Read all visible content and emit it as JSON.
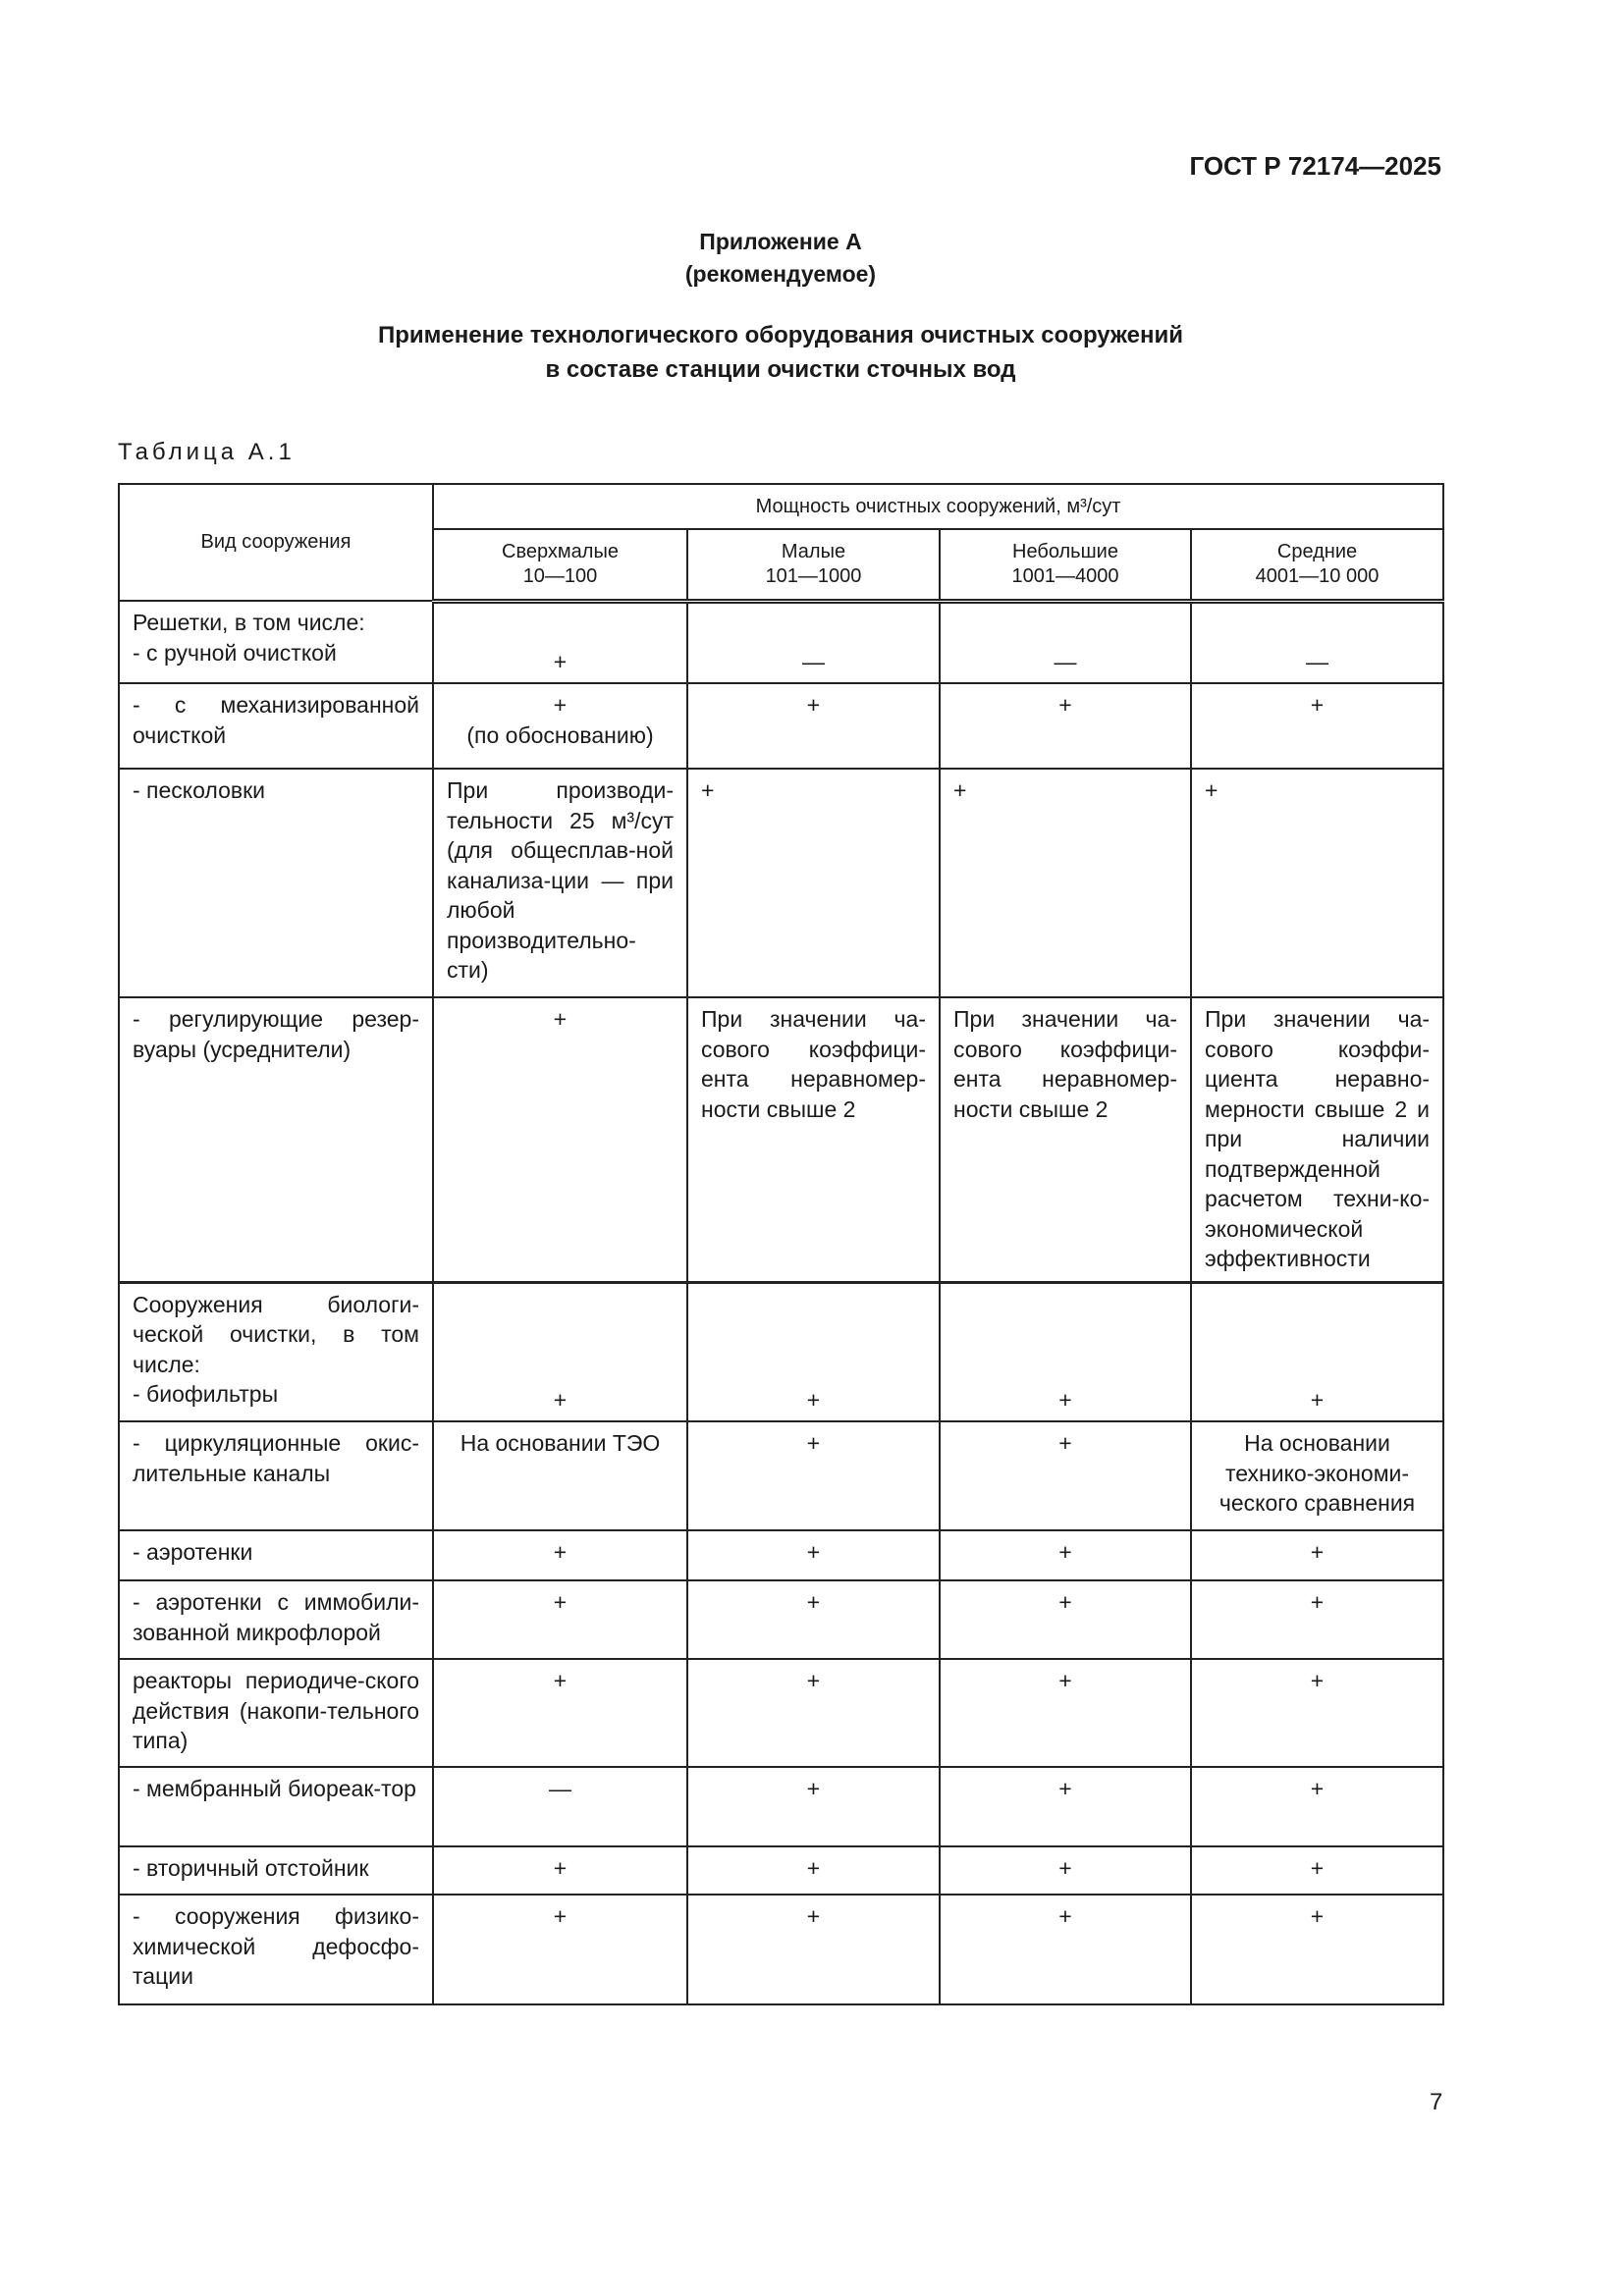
{
  "header": {
    "doc_code": "ГОСТ Р 72174—2025"
  },
  "appendix": {
    "label": "Приложение А",
    "status": "(рекомендуемое)"
  },
  "title": {
    "line1": "Применение технологического оборудования очистных сооружений",
    "line2": "в составе станции очистки сточных вод"
  },
  "table": {
    "label": "Таблица А.1",
    "col_type": "Вид сооружения",
    "col_group": "Мощность очистных сооружений, м³/сут",
    "columns": [
      {
        "name": "Сверхмалые",
        "range": "10—100"
      },
      {
        "name": "Малые",
        "range": "101—1000"
      },
      {
        "name": "Небольшие",
        "range": "1001—4000"
      },
      {
        "name": "Средние",
        "range": "4001—10 000"
      }
    ],
    "rows": [
      {
        "type": "Решетки, в том числе:\n- с ручной очисткой",
        "cells": [
          "+",
          "—",
          "—",
          "—"
        ]
      },
      {
        "type": "- с механизированной очисткой",
        "cells": [
          "+\n(по обоснованию)",
          "+",
          "+",
          "+"
        ]
      },
      {
        "type": " - песколовки",
        "cells": [
          "При производи-тельности 25 м³/сут (для общесплав-ной канализа-ции — при любой производительно-сти)",
          "+",
          "+",
          "+"
        ]
      },
      {
        "type": "- регулирующие резер-вуары (усреднители)",
        "cells": [
          "+",
          "При значении ча-сового коэффици-ента неравномер-ности свыше 2",
          "При значении ча-сового коэффици-ента неравномер-ности свыше 2",
          "При значении ча-сового коэффи-циента неравно-мерности свыше 2 и при наличии подтвержденной расчетом техни-ко-экономической эффективности"
        ]
      },
      {
        "type": "Сооружения биологи-ческой очистки, в том числе:\n- биофильтры",
        "cells": [
          "+",
          "+",
          "+",
          "+"
        ]
      },
      {
        "type": "- циркуляционные окис-лительные каналы",
        "cells": [
          "На основании ТЭО",
          "+",
          "+",
          "На основании технико-экономи-ческого сравнения"
        ]
      },
      {
        "type": "- аэротенки",
        "cells": [
          "+",
          "+",
          "+",
          "+"
        ]
      },
      {
        "type": "- аэротенки с иммобили-зованной микрофлорой",
        "cells": [
          "+",
          "+",
          "+",
          "+"
        ]
      },
      {
        "type": "  реакторы периодиче-ского действия (накопи-тельного типа)",
        "cells": [
          "+",
          "+",
          "+",
          "+"
        ]
      },
      {
        "type": "- мембранный биореак-тор",
        "cells": [
          "—",
          "+",
          "+",
          "+"
        ]
      },
      {
        "type": "- вторичный отстойник",
        "cells": [
          "+",
          "+",
          "+",
          "+"
        ]
      },
      {
        "type": "- сооружения физико-химической дефосфо-тации",
        "cells": [
          "+",
          "+",
          "+",
          "+"
        ]
      }
    ]
  },
  "page_number": "7"
}
